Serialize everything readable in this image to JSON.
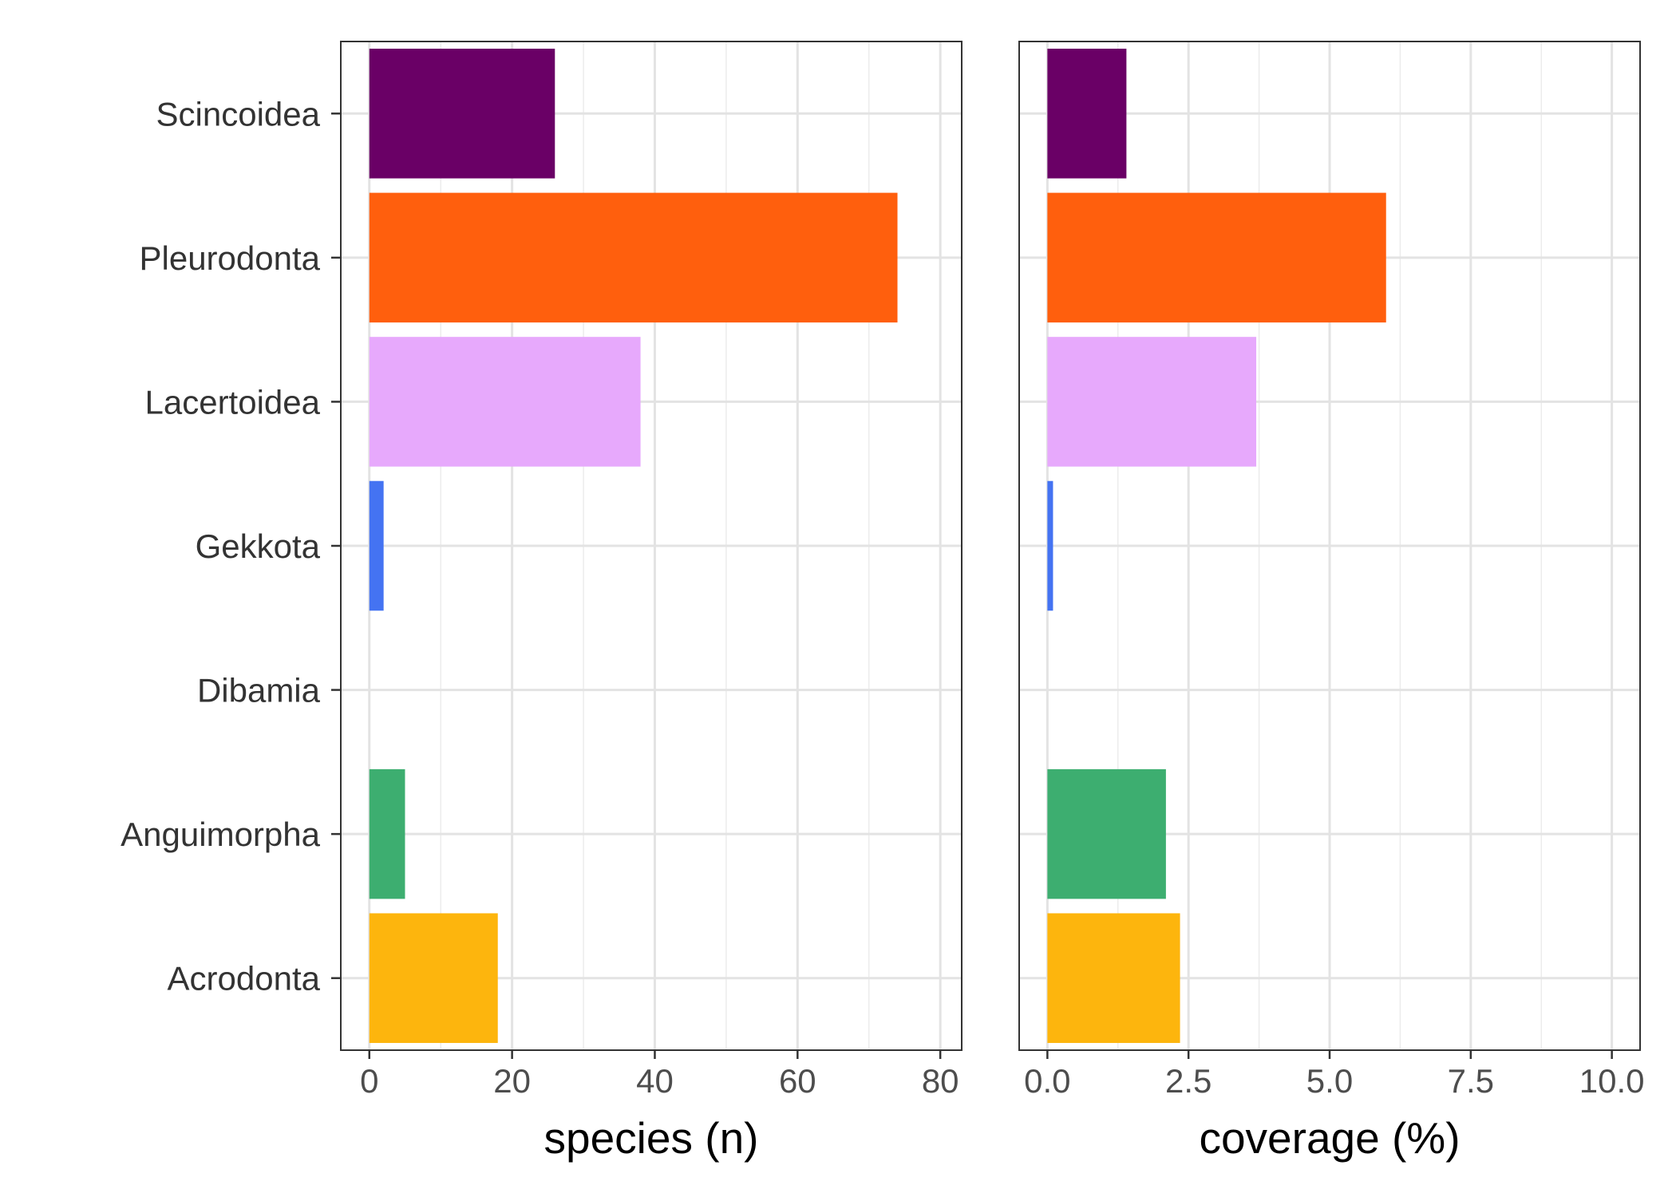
{
  "chart_data": {
    "type": "bar",
    "orientation": "horizontal",
    "categories": [
      "Acrodonta",
      "Anguimorpha",
      "Dibamia",
      "Gekkota",
      "Lacertoidea",
      "Pleurodonta",
      "Scincoidea"
    ],
    "colors": {
      "Acrodonta": "#FDB50D",
      "Anguimorpha": "#3DAE70",
      "Dibamia": "#1B9E9E",
      "Gekkota": "#4473F2",
      "Lacertoidea": "#E7A9FC",
      "Pleurodonta": "#FF5F0D",
      "Scincoidea": "#6A0066"
    },
    "grid": true,
    "legend": "none",
    "panels": [
      {
        "xlabel": "species (n)",
        "xlim": [
          -4,
          83
        ],
        "ticks": [
          0,
          20,
          40,
          60,
          80
        ],
        "tick_labels": [
          "0",
          "20",
          "40",
          "60",
          "80"
        ],
        "values": [
          18,
          5,
          0,
          2,
          38,
          74,
          26
        ]
      },
      {
        "xlabel": "coverage (%)",
        "xlim": [
          -0.5,
          10.5
        ],
        "ticks": [
          0,
          2.5,
          5,
          7.5,
          10
        ],
        "tick_labels": [
          "0.0",
          "2.5",
          "5.0",
          "7.5",
          "10.0"
        ],
        "values": [
          2.35,
          2.1,
          0,
          0.1,
          3.7,
          6.0,
          1.4
        ]
      }
    ]
  }
}
